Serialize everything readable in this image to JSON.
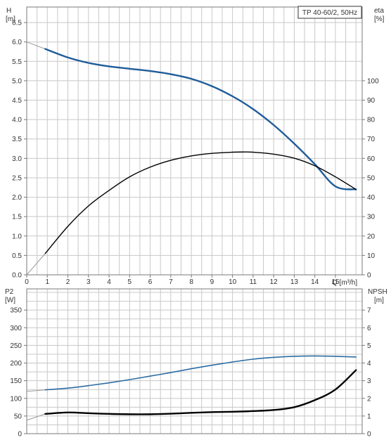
{
  "chart_data": [
    {
      "type": "line",
      "title": "TP 40-60/2, 50Hz",
      "xlabel": "Q [m³/h]",
      "ylabel_left": [
        "H",
        "[m]"
      ],
      "ylabel_right": [
        "eta",
        "[%]"
      ],
      "x_ticks": [
        "0",
        "1",
        "2",
        "3",
        "4",
        "5",
        "6",
        "7",
        "8",
        "9",
        "10",
        "11",
        "12",
        "13",
        "14",
        "15"
      ],
      "xlim": [
        0,
        16.3
      ],
      "ylim_left": [
        0,
        6.9
      ],
      "ylim_right": [
        0,
        138
      ],
      "left_ticks": [
        "0.0",
        "0.5",
        "1.0",
        "1.5",
        "2.0",
        "2.5",
        "3.0",
        "3.5",
        "4.0",
        "4.5",
        "5.0",
        "5.5",
        "6.0",
        "6.5"
      ],
      "right_ticks": [
        "0",
        "10",
        "20",
        "30",
        "40",
        "50",
        "60",
        "70",
        "80",
        "90",
        "100"
      ],
      "grid": true,
      "series": [
        {
          "axis": "left",
          "color": "#1f5c99",
          "extrapolated_x": [
            0,
            0.9
          ],
          "x": [
            0.9,
            2,
            3,
            4,
            5,
            6,
            7,
            8,
            9,
            10,
            11,
            12,
            13,
            14,
            15,
            16
          ],
          "values": [
            5.82,
            5.6,
            5.46,
            5.37,
            5.31,
            5.25,
            5.17,
            5.05,
            4.86,
            4.6,
            4.27,
            3.86,
            3.38,
            2.85,
            2.28,
            2.2
          ]
        },
        {
          "axis": "right",
          "color": "#000000",
          "extrapolated_x": [
            0,
            0.9
          ],
          "x": [
            0.9,
            2,
            3,
            4,
            5,
            6,
            7,
            8,
            9,
            10,
            10.5,
            11,
            12,
            13,
            14,
            15,
            16
          ],
          "values": [
            11,
            25,
            35.5,
            43.5,
            50.5,
            55.5,
            59,
            61.3,
            62.6,
            63.2,
            63.3,
            63.2,
            62.2,
            60.1,
            56.2,
            50.5,
            44
          ]
        }
      ]
    },
    {
      "type": "line",
      "title": "",
      "ylabel_left": [
        "P2",
        "[W]"
      ],
      "ylabel_right": [
        "NPSH",
        "[m]"
      ],
      "xlim": [
        0,
        16.3
      ],
      "ylim_left": [
        0,
        410
      ],
      "ylim_right": [
        0,
        8.2
      ],
      "left_ticks": [
        "0",
        "50",
        "100",
        "150",
        "200",
        "250",
        "300",
        "350"
      ],
      "right_ticks": [
        "0",
        "1",
        "2",
        "3",
        "4",
        "5",
        "6",
        "7"
      ],
      "grid": true,
      "series": [
        {
          "axis": "left",
          "color": "#2b6ca3",
          "extrapolated_x": [
            0,
            0.9
          ],
          "x": [
            0.9,
            2,
            3,
            4,
            5,
            6,
            7,
            8,
            9,
            10,
            11,
            12,
            13,
            14,
            15,
            16
          ],
          "values": [
            124,
            129,
            136,
            144,
            153,
            163,
            173,
            184,
            194,
            203,
            211,
            216,
            219,
            220,
            219,
            217
          ]
        },
        {
          "axis": "right",
          "color": "#000000",
          "extrapolated_x": [
            0,
            0.9
          ],
          "x": [
            0.9,
            2,
            3,
            4,
            5,
            6,
            7,
            8,
            9,
            10,
            11,
            12,
            13,
            14,
            15,
            16
          ],
          "values": [
            1.12,
            1.2,
            1.16,
            1.12,
            1.1,
            1.1,
            1.13,
            1.18,
            1.22,
            1.24,
            1.28,
            1.34,
            1.5,
            1.9,
            2.5,
            3.6
          ]
        }
      ]
    }
  ]
}
